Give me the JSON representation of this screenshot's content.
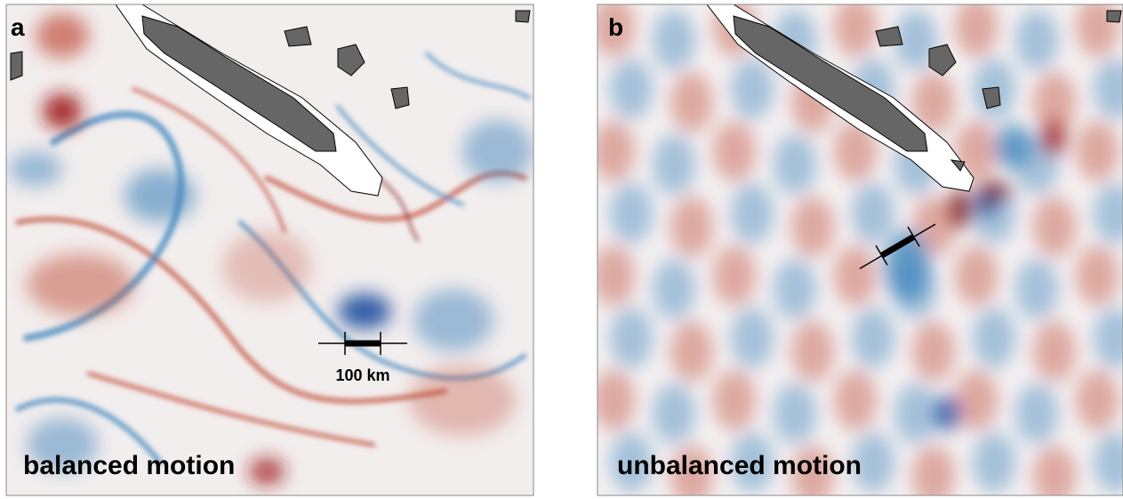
{
  "panels": [
    {
      "label": "a",
      "caption": "balanced motion",
      "scale_bar": "100 km"
    },
    {
      "label": "b",
      "caption": "unbalanced motion"
    }
  ]
}
